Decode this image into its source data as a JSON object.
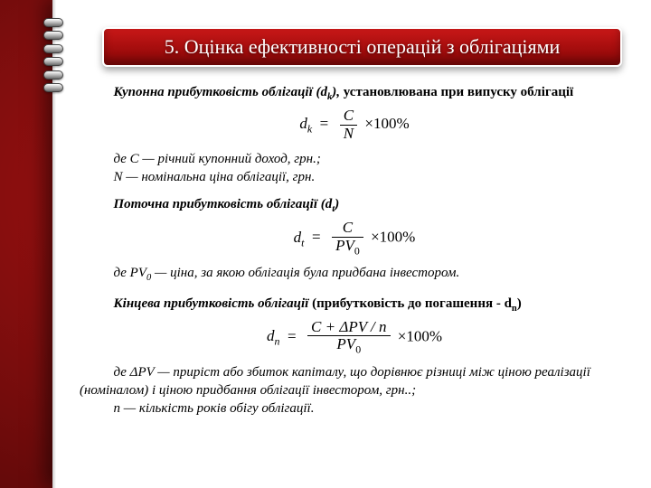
{
  "colors": {
    "header_gradient_top": "#c91818",
    "header_gradient_mid": "#a70e0e",
    "header_gradient_bot": "#8a0707",
    "bg_center": "#a61111",
    "bg_edge": "#2e0303",
    "paper": "#ffffff",
    "text": "#000000"
  },
  "typography": {
    "body_fontsize": 15,
    "header_fontsize": 22,
    "formula_fontsize": 17,
    "font_family": "Georgia, Times New Roman, serif"
  },
  "header": {
    "title": "5. Оцінка ефективності операцій з облігаціями"
  },
  "section1": {
    "lead_bold": "Купонна прибутковість облігації (d",
    "lead_sub": "k",
    "lead_tail": "),",
    "lead_rest": " установлювана при випуску облігації",
    "formula": {
      "lhs_var": "d",
      "lhs_sub": "k",
      "numerator": "C",
      "denominator": "N",
      "tail": "×100%"
    },
    "defs": [
      "де  C — річний купонний доход, грн.;",
      "N — номінальна ціна облігації, грн."
    ]
  },
  "section2": {
    "lead_bold": "Поточна прибутковість облігації (d",
    "lead_sub": "t",
    "lead_tail": ")",
    "formula": {
      "lhs_var": "d",
      "lhs_sub": "t",
      "numerator": "C",
      "denom_var": "PV",
      "denom_sub": "0",
      "tail": "×100%"
    },
    "def": "де PV",
    "def_sub": "0",
    "def_tail": "  — ціна, за якою облігація була придбана інвестором."
  },
  "section3": {
    "lead_bold": "Кінцева прибутковість облігації",
    "lead_rest": " (прибутковість до погашення - d",
    "lead_sub": "n",
    "lead_tail": ")",
    "formula": {
      "lhs_var": "d",
      "lhs_sub": "n",
      "num_left": "C + ΔPV / n",
      "denom_var": "PV",
      "denom_sub": "0",
      "tail": "×100%"
    },
    "def1": "де ΔPV — приріст або збиток капіталу, що дорівнює різниці між ціною реалізації (номіналом) і ціною придбання облігації інвестором, грн..;",
    "def2": "n — кількість років обігу облігації."
  }
}
